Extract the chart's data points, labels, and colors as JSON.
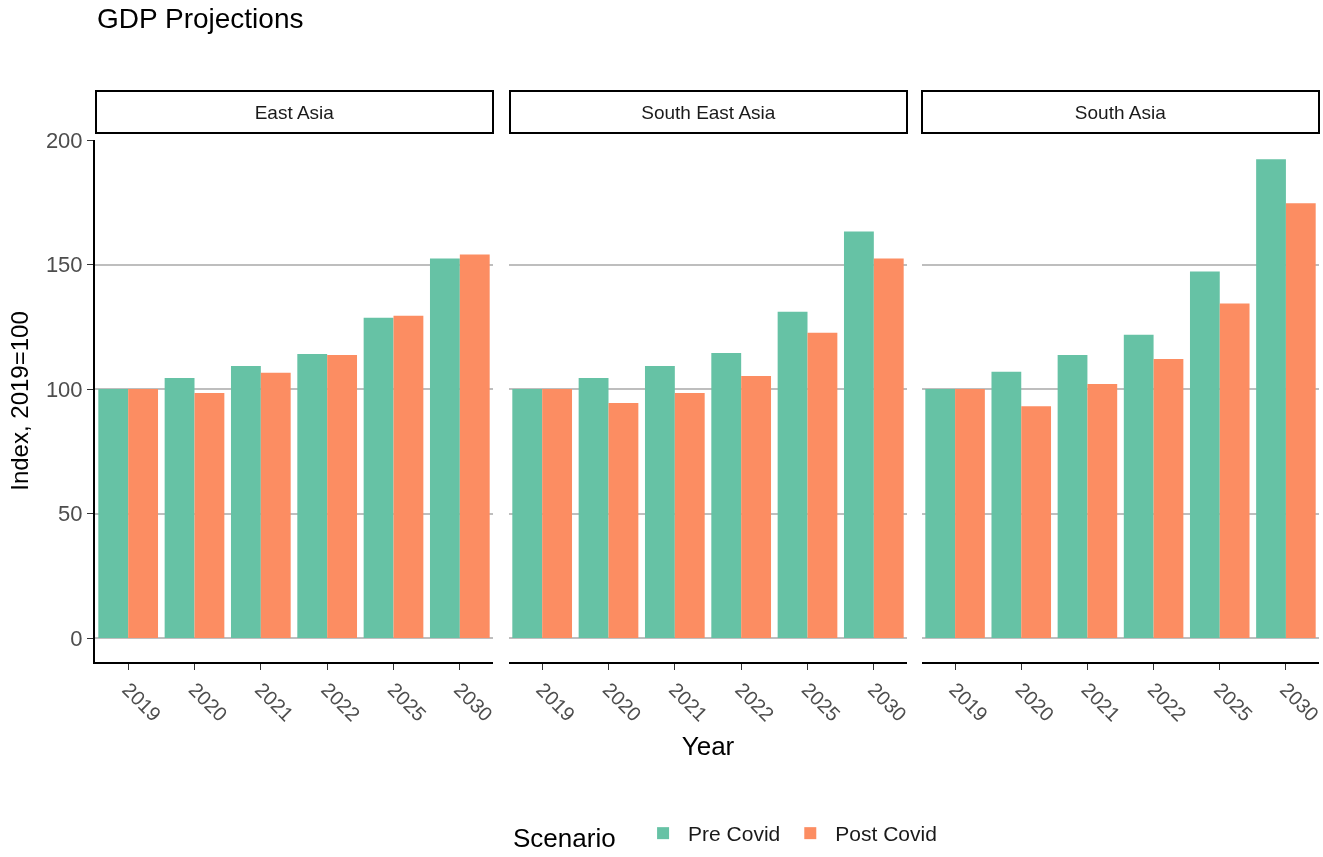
{
  "chart_data": [
    {
      "type": "bar",
      "title": "GDP Projections",
      "subtitle": "East Asia",
      "ylabel": "Index, 2019=100",
      "categories": [
        "2019",
        "2020",
        "2021",
        "2022",
        "2025",
        "2030"
      ],
      "ylim": [
        -9.6,
        200
      ],
      "yticks": [
        0,
        50,
        100,
        150,
        200
      ],
      "grid": "y",
      "series": [
        {
          "color": "#66c2a5",
          "values": [
            100,
            104.4,
            109.3,
            114.1,
            128.6,
            152.4
          ]
        },
        {
          "color": "#fc8d62",
          "values": [
            100,
            98.4,
            106.5,
            113.7,
            129.4,
            154
          ]
        }
      ]
    },
    {
      "type": "bar",
      "subtitle": "South East Asia",
      "xlabel": "Year",
      "legend_title": "Scenario",
      "legend": "bottom",
      "tick_labels": "x",
      "categories": [
        "2019",
        "2020",
        "2021",
        "2022",
        "2025",
        "2030"
      ],
      "ylim": [
        -9.6,
        200
      ],
      "yticks": [
        0,
        50,
        100,
        150,
        200
      ],
      "grid": "y",
      "series": [
        {
          "name": "Pre Covid",
          "color": "#66c2a5",
          "values": [
            100,
            104.4,
            109.3,
            114.5,
            131,
            163.3
          ]
        },
        {
          "name": "Post Covid",
          "color": "#fc8d62",
          "values": [
            100,
            94.4,
            98.4,
            105.2,
            122.6,
            152.4
          ]
        }
      ]
    },
    {
      "type": "bar",
      "subtitle": "South Asia",
      "tick_labels": "x",
      "categories": [
        "2019",
        "2020",
        "2021",
        "2022",
        "2025",
        "2030"
      ],
      "ylim": [
        -9.6,
        200
      ],
      "yticks": [
        0,
        50,
        100,
        150,
        200
      ],
      "grid": "y",
      "series": [
        {
          "color": "#66c2a5",
          "values": [
            100,
            106.9,
            113.7,
            121.8,
            147.2,
            192.3
          ]
        },
        {
          "color": "#fc8d62",
          "values": [
            100,
            93.1,
            102,
            112.1,
            134.3,
            174.6
          ]
        }
      ]
    }
  ]
}
